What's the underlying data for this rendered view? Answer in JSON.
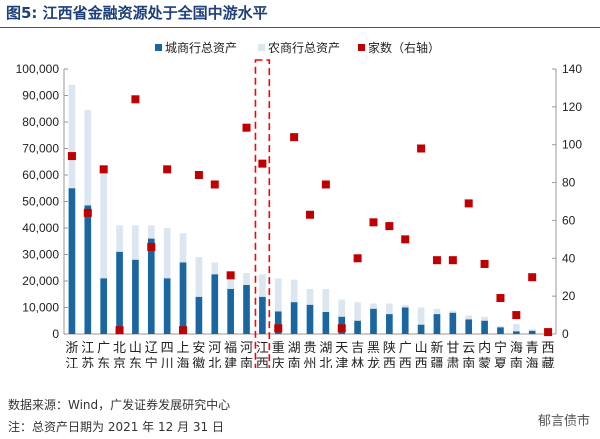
{
  "title": "图5:  江西省金融资源处于全国中游水平",
  "source": "数据来源：Wind，广发证券发展研究中心",
  "note": "注：总资产日期为 2021 年 12 月 31 日",
  "watermark": "郁言债市",
  "colors": {
    "city": "#1a66a0",
    "rural": "#dce6f1",
    "count": "#c00000",
    "highlight": "#ff0000"
  },
  "chart_data": {
    "type": "bar",
    "stacked": true,
    "highlight_category": "江西",
    "categories": [
      "浙江",
      "江苏",
      "广东",
      "北京",
      "山东",
      "辽宁",
      "四川",
      "上海",
      "安徽",
      "河北",
      "福建",
      "河南",
      "江西",
      "重庆",
      "湖南",
      "贵州",
      "湖北",
      "天津",
      "吉林",
      "黑龙江",
      "陕西",
      "广西",
      "山西",
      "新疆",
      "甘肃",
      "云南",
      "内蒙古",
      "宁夏",
      "海南",
      "青海",
      "西藏"
    ],
    "series": [
      {
        "name": "城商行总资产",
        "axis": "left",
        "type": "bar",
        "values": [
          55000,
          48500,
          21000,
          31000,
          28000,
          36000,
          21000,
          27000,
          14000,
          22500,
          17000,
          18500,
          14000,
          8500,
          12000,
          11000,
          8300,
          6500,
          5000,
          9500,
          7500,
          10000,
          3500,
          7500,
          8000,
          5500,
          5000,
          2500,
          1000,
          1200,
          300
        ]
      },
      {
        "name": "农商行总资产",
        "axis": "left",
        "type": "bar",
        "values": [
          39000,
          36000,
          40000,
          10000,
          13000,
          5000,
          19000,
          11000,
          15000,
          4500,
          5000,
          4500,
          8500,
          12500,
          8500,
          6000,
          8700,
          6500,
          7000,
          2000,
          4000,
          1000,
          6500,
          2000,
          800,
          1500,
          1500,
          500,
          2800,
          600,
          0
        ]
      },
      {
        "name": "家数（右轴）",
        "axis": "right",
        "type": "scatter",
        "values": [
          94,
          64,
          87,
          2,
          124,
          46,
          87,
          2,
          84,
          79,
          31,
          109,
          90,
          3,
          104,
          63,
          79,
          3,
          40,
          59,
          57,
          50,
          98,
          39,
          39,
          69,
          37,
          19,
          10,
          30,
          1
        ]
      }
    ],
    "ylim_left": [
      0,
      100000
    ],
    "yticks_left": [
      "0",
      "10,000",
      "20,000",
      "30,000",
      "40,000",
      "50,000",
      "60,000",
      "70,000",
      "80,000",
      "90,000",
      "100,000"
    ],
    "ylim_right": [
      0,
      140
    ],
    "yticks_right": [
      "0",
      "20",
      "40",
      "60",
      "80",
      "100",
      "120",
      "140"
    ],
    "legend_placement": "top"
  }
}
